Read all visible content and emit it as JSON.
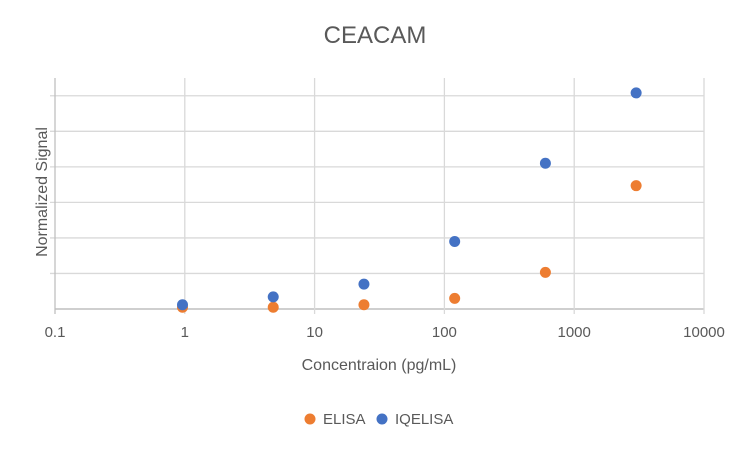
{
  "chart_data": {
    "type": "scatter",
    "title": "CEACAM",
    "xlabel": "Concentraion (pg/mL)",
    "ylabel": "Normalized Signal",
    "x_scale": "log",
    "xlim": [
      0.1,
      10000
    ],
    "x_ticks": [
      "0.1",
      "1",
      "10",
      "100",
      "1000",
      "10000"
    ],
    "ylim": [
      0,
      6.5
    ],
    "y_gridlines": [
      0,
      1,
      2,
      3,
      4,
      5,
      6
    ],
    "y_tick_labels_shown": false,
    "grid": true,
    "legend_position": "bottom",
    "series": [
      {
        "name": "ELISA",
        "color": "#ED7D31",
        "x": [
          0.96,
          4.8,
          24,
          120,
          600,
          3000
        ],
        "y": [
          0.05,
          0.05,
          0.12,
          0.3,
          1.03,
          3.47
        ]
      },
      {
        "name": "IQELISA",
        "color": "#4472C4",
        "x": [
          0.96,
          4.8,
          24,
          120,
          600,
          3000
        ],
        "y": [
          0.12,
          0.34,
          0.7,
          1.9,
          4.1,
          6.08
        ]
      }
    ]
  }
}
